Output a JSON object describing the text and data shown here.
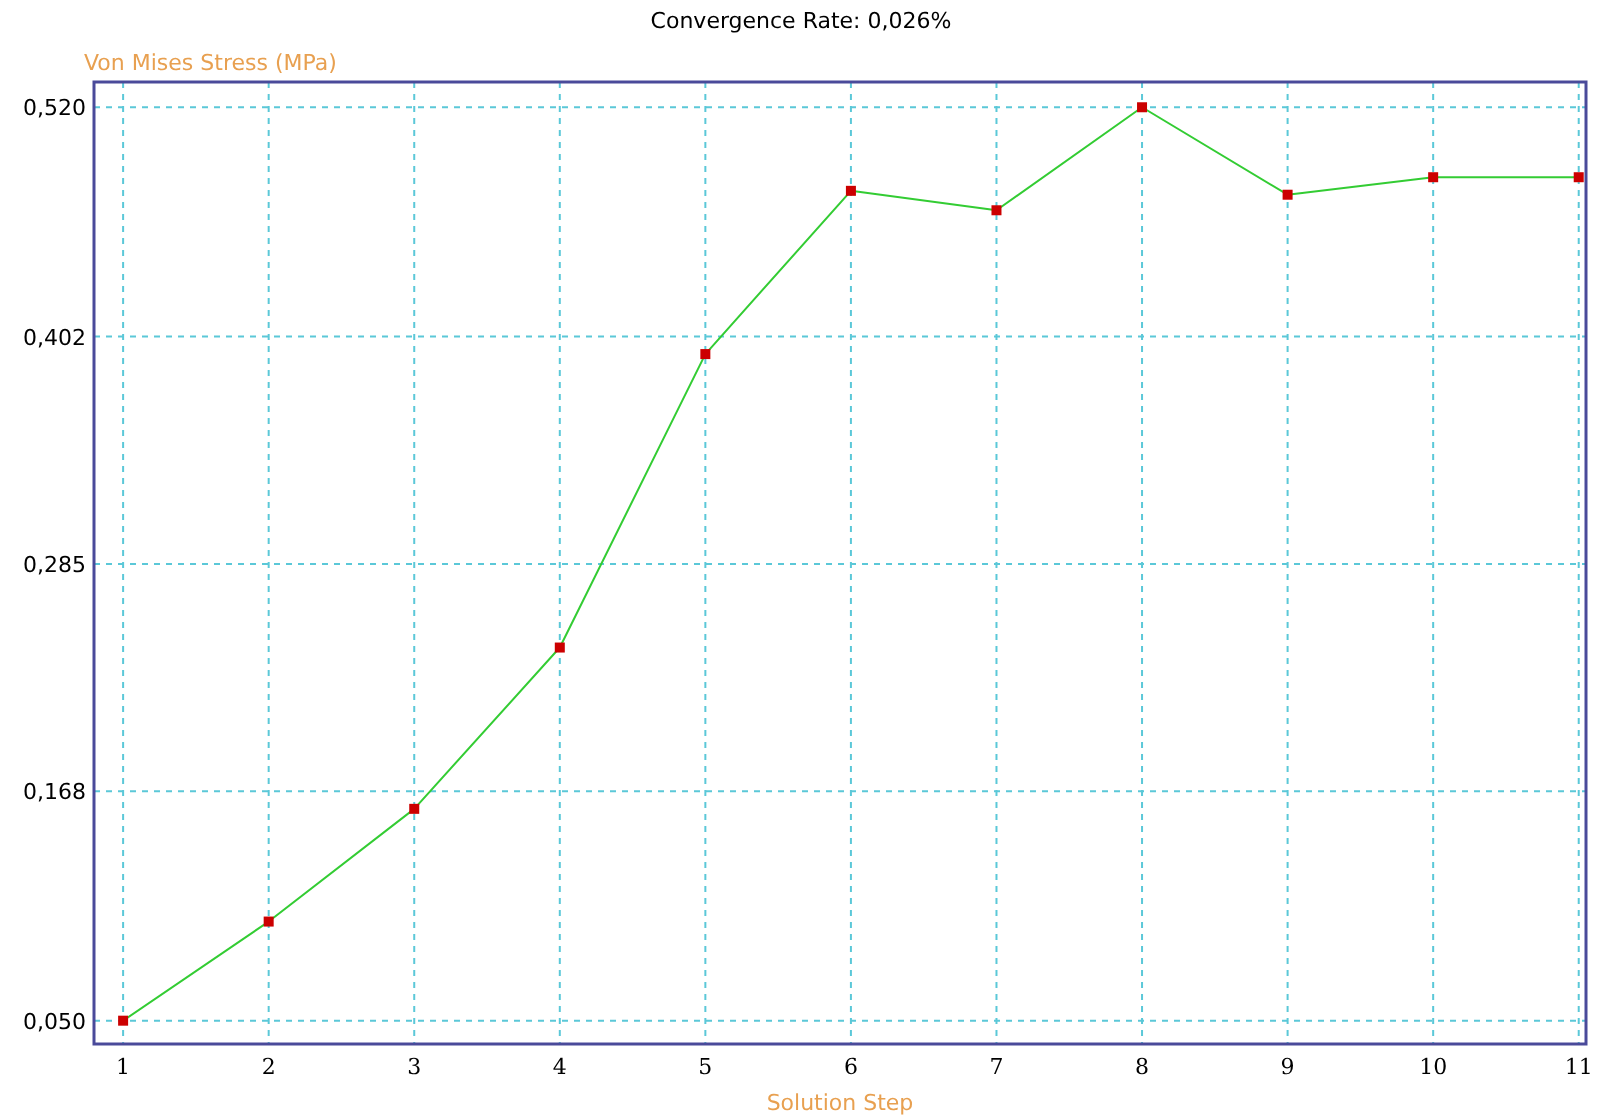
{
  "chart_data": {
    "type": "line",
    "title": "Convergence Rate: 0,026%",
    "xlabel": "Solution Step",
    "ylabel": "Von Mises Stress (MPa)",
    "x": [
      1,
      2,
      3,
      4,
      5,
      6,
      7,
      8,
      9,
      10,
      11
    ],
    "series": [
      {
        "color": "#33cc33",
        "values": [
          0.05,
          0.101,
          0.159,
          0.242,
          0.393,
          0.477,
          0.467,
          0.52,
          0.475,
          0.484,
          0.484
        ]
      }
    ],
    "xlim": [
      0.8,
      11.05
    ],
    "ylim": [
      0.038,
      0.533
    ],
    "xticks": [
      1,
      2,
      3,
      4,
      5,
      6,
      7,
      8,
      9,
      10,
      11
    ],
    "yticks": [
      {
        "value": 0.05,
        "label": "0,050"
      },
      {
        "value": 0.168,
        "label": "0,168"
      },
      {
        "value": 0.285,
        "label": "0,285"
      },
      {
        "value": 0.402,
        "label": "0,402"
      },
      {
        "value": 0.52,
        "label": "0,520"
      }
    ],
    "grid": true,
    "marker": "square",
    "line_style": "solid"
  }
}
